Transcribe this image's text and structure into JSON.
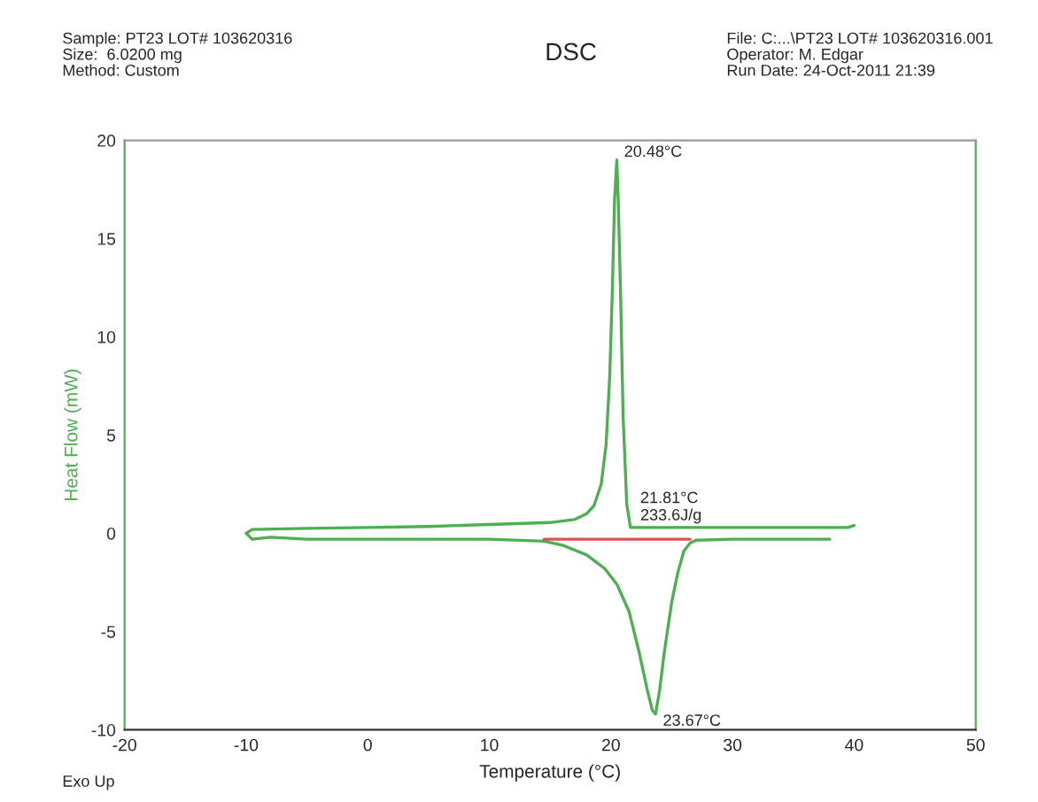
{
  "chart_data": {
    "type": "line",
    "title": "DSC",
    "xlabel": "Temperature (°C)",
    "ylabel": "Heat Flow (mW)",
    "annotations": [
      "Sample: PT23 LOT# 103620316\nSize:  6.0200 mg\nMethod: Custom",
      "File: C:...\\PT23 LOT# 103620316.001\nOperator: M. Edgar\nRun Date: 24-Oct-2011 21:39",
      "Exo Up",
      {
        "text": "20.48°C",
        "x": 20.48,
        "y": 19
      },
      {
        "text": "21.81°C\n233.6J/g",
        "x": 21.81,
        "y": 0.5
      },
      {
        "text": "23.67°C",
        "x": 23.67,
        "y": -9.2
      }
    ],
    "series": [
      {
        "color": "#4caf50",
        "x": [
          40,
          39.5,
          38,
          35,
          30,
          25,
          22.5,
          21.6,
          21.3,
          21,
          20.8,
          20.6,
          20.48,
          20.3,
          20.1,
          19.9,
          19.6,
          19.2,
          18.6,
          18,
          17,
          15,
          10,
          5,
          0,
          -5,
          -9.5,
          -10,
          -9.5
        ],
        "values": [
          0.4,
          0.3,
          0.3,
          0.3,
          0.3,
          0.3,
          0.3,
          0.3,
          1.5,
          6,
          12,
          17,
          19,
          17,
          12,
          8,
          4.5,
          2.5,
          1.4,
          1,
          0.7,
          0.55,
          0.45,
          0.35,
          0.3,
          0.25,
          0.2,
          0,
          -0.3
        ]
      },
      {
        "color": "#4caf50",
        "x": [
          -9.5,
          -8,
          -5,
          0,
          5,
          10,
          14.5,
          16,
          18,
          19.5,
          20.5,
          21.5,
          22.3,
          23,
          23.4,
          23.67,
          24,
          24.4,
          25,
          25.5,
          26,
          26.5,
          27,
          30,
          35,
          38
        ],
        "values": [
          -0.3,
          -0.2,
          -0.3,
          -0.3,
          -0.3,
          -0.3,
          -0.4,
          -0.6,
          -1.1,
          -1.8,
          -2.6,
          -4,
          -6,
          -8,
          -9,
          -9.2,
          -8,
          -6,
          -3.5,
          -2,
          -0.9,
          -0.5,
          -0.35,
          -0.3,
          -0.3,
          -0.3
        ]
      },
      {
        "color": "#e05050",
        "x": [
          14.5,
          26.5
        ],
        "values": [
          -0.3,
          -0.3
        ]
      }
    ],
    "xlim": [
      -20,
      50
    ],
    "ylim": [
      -10,
      20
    ],
    "xticks": [
      -20,
      -10,
      0,
      10,
      20,
      30,
      40,
      50
    ],
    "yticks": [
      -10,
      -5,
      0,
      5,
      10,
      15,
      20
    ],
    "grid": false,
    "legend": false
  }
}
